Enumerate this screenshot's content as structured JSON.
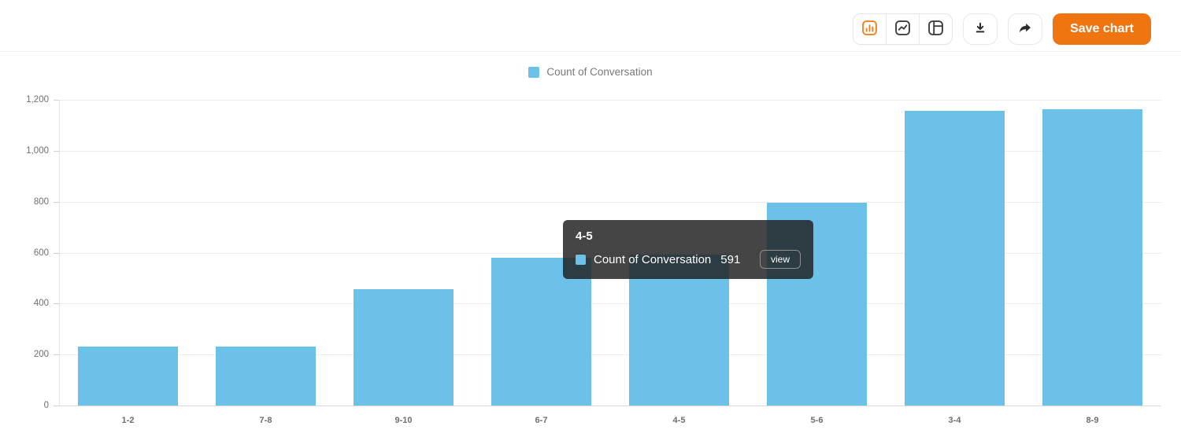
{
  "toolbar": {
    "chart_type_options": [
      {
        "id": "bar",
        "icon": "bar-chart-icon",
        "active": true
      },
      {
        "id": "line",
        "icon": "line-chart-icon",
        "active": false
      },
      {
        "id": "table",
        "icon": "table-icon",
        "active": false
      }
    ],
    "download_icon": "download-icon",
    "share_icon": "share-icon",
    "save_label": "Save chart"
  },
  "legend": {
    "label": "Count of Conversation"
  },
  "tooltip": {
    "title": "4-5",
    "series": "Count of Conversation",
    "value": "591",
    "action_label": "view"
  },
  "chart_data": {
    "type": "bar",
    "title": "",
    "xlabel": "",
    "ylabel": "",
    "categories": [
      "1-2",
      "7-8",
      "9-10",
      "6-7",
      "4-5",
      "5-6",
      "3-4",
      "8-9"
    ],
    "series": [
      {
        "name": "Count of Conversation",
        "values": [
          230,
          230,
          458,
          580,
          591,
          795,
          1158,
          1162
        ]
      }
    ],
    "ylim": [
      0,
      1200
    ],
    "yticks": [
      0,
      200,
      400,
      600,
      800,
      1000,
      1200
    ],
    "ytick_labels": [
      "0",
      "200",
      "400",
      "600",
      "800",
      "1,000",
      "1,200"
    ],
    "grid": true,
    "legend_position": "top",
    "highlighted_category": "4-5"
  },
  "colors": {
    "bar_fill": "#6CC1E8",
    "accent_orange": "#EF7511",
    "icon_orange": "#F28021",
    "icon_gray": "#3f3f3f",
    "tooltip_bg": "rgba(33,33,33,0.84)"
  }
}
